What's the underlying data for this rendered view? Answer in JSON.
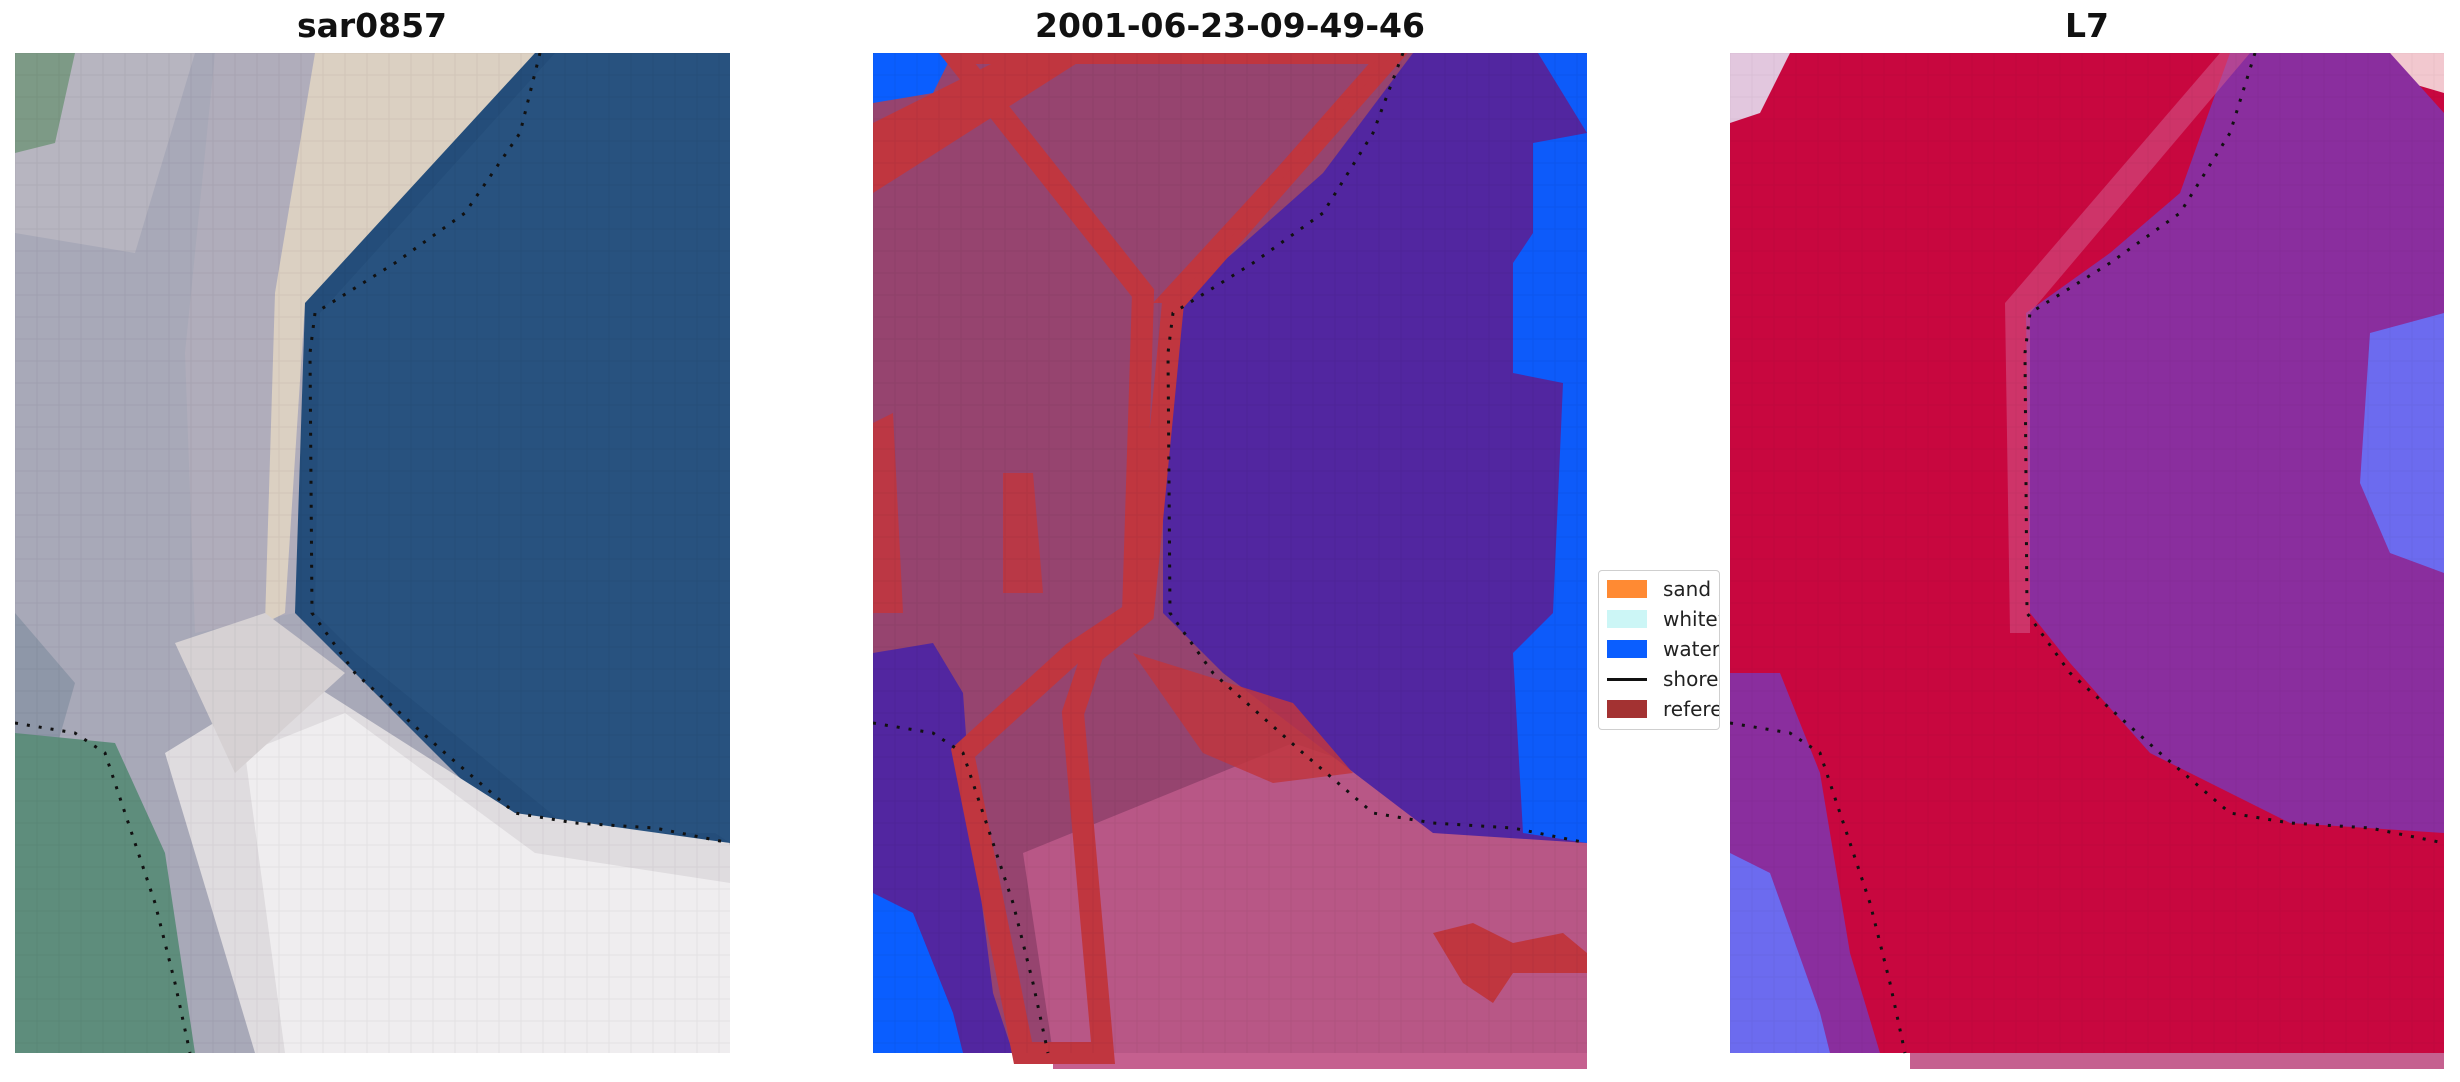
{
  "panels": [
    {
      "title": "sar0857"
    },
    {
      "title": "2001-06-23-09-49-46"
    },
    {
      "title": "L7"
    }
  ],
  "legend": {
    "items": [
      {
        "label": "sand",
        "color": "#ff8a33",
        "kind": "patch"
      },
      {
        "label": "whitewater",
        "color": "#ccf6f6",
        "kind": "patch"
      },
      {
        "label": "water",
        "color": "#0a5eff",
        "kind": "patch"
      },
      {
        "label": "shoreline",
        "color": "#111111",
        "kind": "line"
      },
      {
        "label": "reference shoreline",
        "color": "#a33232",
        "kind": "patch"
      }
    ]
  },
  "colors": {
    "water": "#0a5eff",
    "ref_shoreline": "#a33232"
  }
}
